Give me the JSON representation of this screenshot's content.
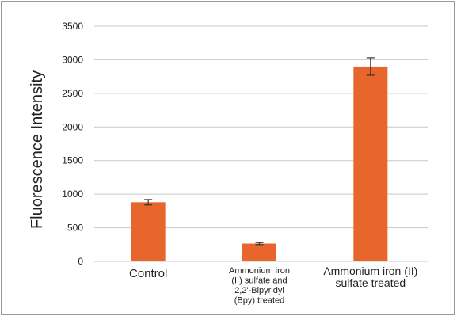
{
  "chart_data": {
    "type": "bar",
    "title": "",
    "xlabel": "",
    "ylabel": "Fluorescence Intensity",
    "ylim": [
      0,
      3500
    ],
    "yticks": [
      0,
      500,
      1000,
      1500,
      2000,
      2500,
      3000,
      3500
    ],
    "grid": true,
    "legend": "none",
    "bar_color": "#e8652b",
    "error_color": "#333333",
    "categories": [
      {
        "label_lines": [
          "Control"
        ]
      },
      {
        "label_lines": [
          "Ammonium iron",
          "(II) sulfate and",
          "2,2'-Bipyridyl",
          "(Bpy) treated"
        ]
      },
      {
        "label_lines": [
          "Ammonium iron (II)",
          "sulfate treated"
        ]
      }
    ],
    "values": [
      880,
      265,
      2900
    ],
    "errors": [
      40,
      15,
      130
    ]
  }
}
